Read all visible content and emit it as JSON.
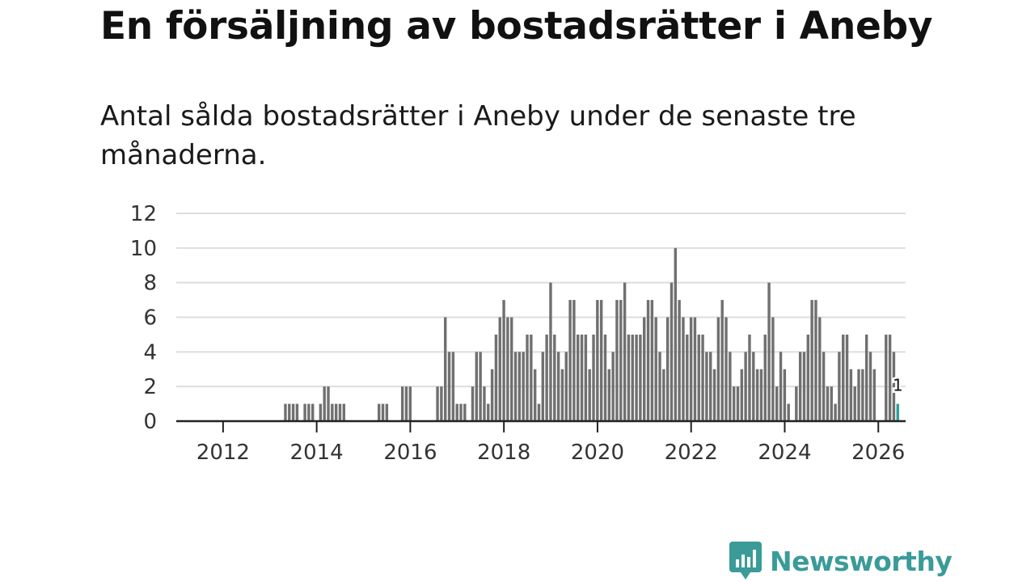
{
  "title": "En försäljning av bostadsrätter i Aneby",
  "subtitle": "Antal sålda bostadsrätter i Aneby under de senaste tre månaderna.",
  "logo": {
    "text": "Newsworthy",
    "icon": "newsworthy-bar-icon"
  },
  "colors": {
    "bar": "#707070",
    "highlight": "#2aa198",
    "grid": "#dddddd",
    "axis": "#222222"
  },
  "chart_data": {
    "type": "bar",
    "title": "",
    "xlabel": "",
    "ylabel": "",
    "ylim": [
      0,
      12
    ],
    "yticks": [
      0,
      2,
      4,
      6,
      8,
      10,
      12
    ],
    "xticks": [
      "2012",
      "2014",
      "2016",
      "2018",
      "2020",
      "2022",
      "2024",
      "2026"
    ],
    "xrange": [
      "2011-01",
      "2026-08"
    ],
    "start": "2011-01",
    "interval": "month",
    "highlight_last": true,
    "last_label": "1",
    "values": [
      0,
      0,
      0,
      0,
      0,
      0,
      0,
      0,
      0,
      0,
      0,
      0,
      0,
      0,
      0,
      0,
      0,
      0,
      0,
      0,
      0,
      0,
      0,
      0,
      0,
      0,
      0,
      0,
      1,
      1,
      1,
      1,
      0,
      1,
      1,
      1,
      0,
      1,
      2,
      2,
      1,
      1,
      1,
      1,
      0,
      0,
      0,
      0,
      0,
      0,
      0,
      0,
      1,
      1,
      1,
      0,
      0,
      0,
      2,
      2,
      2,
      0,
      0,
      0,
      0,
      0,
      0,
      2,
      2,
      6,
      4,
      4,
      1,
      1,
      1,
      0,
      2,
      4,
      4,
      2,
      1,
      3,
      5,
      6,
      7,
      6,
      6,
      4,
      4,
      4,
      5,
      5,
      3,
      1,
      4,
      5,
      8,
      5,
      4,
      3,
      4,
      7,
      7,
      5,
      5,
      5,
      3,
      5,
      7,
      7,
      5,
      3,
      4,
      7,
      7,
      8,
      5,
      5,
      5,
      5,
      6,
      7,
      7,
      6,
      4,
      3,
      6,
      8,
      10,
      7,
      6,
      5,
      6,
      6,
      5,
      5,
      4,
      4,
      3,
      6,
      7,
      6,
      4,
      2,
      2,
      3,
      4,
      5,
      4,
      3,
      3,
      5,
      8,
      6,
      2,
      4,
      3,
      1,
      0,
      2,
      4,
      4,
      5,
      7,
      7,
      6,
      4,
      2,
      2,
      1,
      4,
      5,
      5,
      3,
      2,
      3,
      3,
      5,
      4,
      3,
      0,
      0,
      5,
      5,
      4,
      1
    ]
  }
}
